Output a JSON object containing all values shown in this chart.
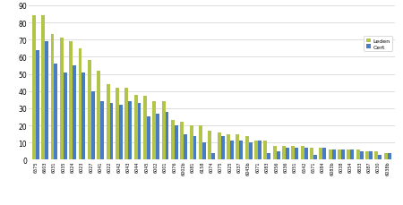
{
  "categories": [
    "6575",
    "6603",
    "6031",
    "6035",
    "6024",
    "6023",
    "6027",
    "6041",
    "6022",
    "6042",
    "6043",
    "6044",
    "6045",
    "6002",
    "6001",
    "6076",
    "6002b",
    "6081",
    "6158",
    "6074",
    "6075",
    "6025",
    "6037",
    "6045b",
    "6071",
    "6083",
    "6056",
    "6036",
    "6051",
    "6542",
    "6571",
    "6084",
    "6083b",
    "6038",
    "6054",
    "6833",
    "6087",
    "6030",
    "6038b"
  ],
  "leden": [
    84,
    84,
    73,
    71,
    69,
    65,
    58,
    52,
    44,
    42,
    42,
    38,
    37,
    34,
    34,
    23,
    22,
    20,
    20,
    17,
    16,
    15,
    15,
    14,
    11,
    11,
    8,
    8,
    8,
    8,
    7,
    7,
    6,
    6,
    6,
    6,
    5,
    5,
    4
  ],
  "cert": [
    64,
    69,
    56,
    51,
    55,
    51,
    40,
    34,
    33,
    32,
    34,
    33,
    25,
    27,
    28,
    20,
    15,
    14,
    10,
    4,
    14,
    11,
    11,
    10,
    11,
    4,
    5,
    7,
    7,
    7,
    3,
    7,
    6,
    6,
    6,
    5,
    5,
    3,
    4
  ],
  "leden_color": "#b2c44a",
  "cert_color": "#4a7cc4",
  "background_color": "#ffffff",
  "grid_color": "#d0d0d0",
  "ylabel_max": 90,
  "yticks": [
    0,
    10,
    20,
    30,
    40,
    50,
    60,
    70,
    80,
    90
  ],
  "legend_labels": [
    "Leden",
    "Cert"
  ]
}
